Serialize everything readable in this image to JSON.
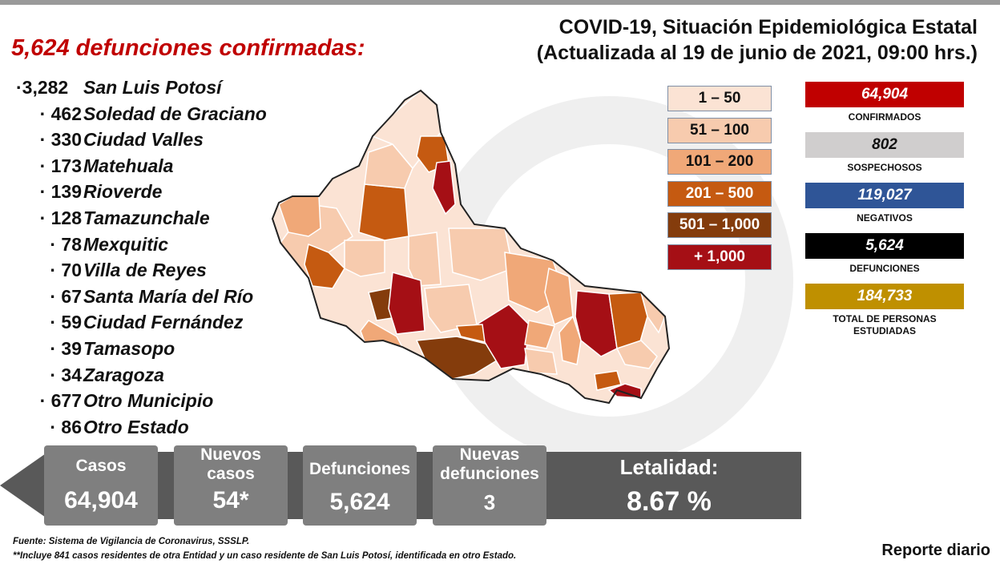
{
  "headline": "5,624 defunciones confirmadas:",
  "title": {
    "line1": "COVID-19, Situación Epidemiológica Estatal",
    "line2": "(Actualizada al 19 de junio de 2021, 09:00 hrs.)"
  },
  "deaths_by_municipality": [
    {
      "value": "3,282",
      "name": "San Luis Potosí"
    },
    {
      "value": "462",
      "name": "Soledad de Graciano"
    },
    {
      "value": "330",
      "name": "Ciudad Valles"
    },
    {
      "value": "173",
      "name": "Matehuala"
    },
    {
      "value": "139",
      "name": "Rioverde"
    },
    {
      "value": "128",
      "name": "Tamazunchale"
    },
    {
      "value": "78",
      "name": "Mexquitic"
    },
    {
      "value": "70",
      "name": "Villa de Reyes"
    },
    {
      "value": "67",
      "name": "Santa María del Río"
    },
    {
      "value": "59",
      "name": "Ciudad Fernández"
    },
    {
      "value": "39",
      "name": "Tamasopo"
    },
    {
      "value": "34",
      "name": "Zaragoza"
    },
    {
      "value": "677",
      "name": "Otro Municipio"
    },
    {
      "value": "86",
      "name": "Otro Estado"
    }
  ],
  "legend": [
    {
      "label": "1 – 50",
      "color": "#fbe3d4",
      "text_color": "#111111"
    },
    {
      "label": "51 – 100",
      "color": "#f7cbae",
      "text_color": "#111111"
    },
    {
      "label": "101 – 200",
      "color": "#f0a878",
      "text_color": "#111111"
    },
    {
      "label": "201 – 500",
      "color": "#c55a11",
      "text_color": "#ffffff"
    },
    {
      "label": "501 – 1,000",
      "color": "#843c0c",
      "text_color": "#ffffff"
    },
    {
      "label": "+ 1,000",
      "color": "#a50f15",
      "text_color": "#ffffff"
    }
  ],
  "stats": [
    {
      "value": "64,904",
      "label": "CONFIRMADOS",
      "color": "#c00000",
      "text_color": "#ffffff"
    },
    {
      "value": "802",
      "label": "SOSPECHOSOS",
      "color": "#d0cece",
      "text_color": "#111111"
    },
    {
      "value": "119,027",
      "label": "NEGATIVOS",
      "color": "#2f5597",
      "text_color": "#ffffff"
    },
    {
      "value": "5,624",
      "label": "DEFUNCIONES",
      "color": "#000000",
      "text_color": "#ffffff"
    },
    {
      "value": "184,733",
      "label": "TOTAL DE PERSONAS ESTUDIADAS",
      "color": "#bf9000",
      "text_color": "#ffffff"
    }
  ],
  "banner": {
    "casos_label": "Casos",
    "casos_value": "64,904",
    "nuevos_label": "Nuevos casos",
    "nuevos_value": "54*",
    "defunciones_label": "Defunciones",
    "defunciones_value": "5,624",
    "nuevas_def_label": "Nuevas defunciones",
    "nuevas_def_value": "3",
    "letalidad_label": "Letalidad:",
    "letalidad_value": "8.67 %"
  },
  "footnotes": {
    "source": "Fuente: Sistema de Vigilancia de Coronavirus, SSSLP.",
    "note": "**Incluye 841 casos residentes de otra Entidad y un caso residente de San Luis Potosí, identificada en otro Estado."
  },
  "report_label": "Reporte diario"
}
